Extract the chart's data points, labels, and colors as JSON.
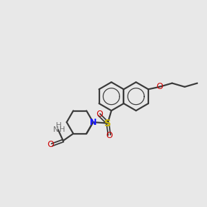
{
  "background_color": "#e8e8e8",
  "bond_color": "#3a3a3a",
  "figsize": [
    3.0,
    3.0
  ],
  "dpi": 100,
  "xlim": [
    0,
    10
  ],
  "ylim": [
    0,
    10
  ]
}
